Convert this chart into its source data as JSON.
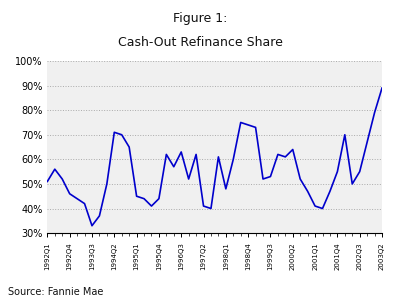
{
  "title_line1": "Figure 1:",
  "title_line2": "Cash-Out Refinance Share",
  "source": "Source: Fannie Mae",
  "line_color": "#0000cc",
  "line_width": 1.2,
  "background_color": "#ffffff",
  "plot_bg_color": "#f0f0f0",
  "ylim": [
    0.3,
    1.0
  ],
  "yticks": [
    0.3,
    0.4,
    0.5,
    0.6,
    0.7,
    0.8,
    0.9,
    1.0
  ],
  "ytick_labels": [
    "30%",
    "40%",
    "50%",
    "60%",
    "70%",
    "80%",
    "90%",
    "100%"
  ],
  "quarters_data": [
    [
      0,
      0.51
    ],
    [
      1,
      0.56
    ],
    [
      2,
      0.52
    ],
    [
      3,
      0.46
    ],
    [
      4,
      0.44
    ],
    [
      5,
      0.42
    ],
    [
      6,
      0.33
    ],
    [
      7,
      0.37
    ],
    [
      8,
      0.5
    ],
    [
      9,
      0.71
    ],
    [
      10,
      0.7
    ],
    [
      11,
      0.65
    ],
    [
      12,
      0.45
    ],
    [
      13,
      0.44
    ],
    [
      14,
      0.41
    ],
    [
      15,
      0.44
    ],
    [
      16,
      0.62
    ],
    [
      17,
      0.57
    ],
    [
      18,
      0.63
    ],
    [
      19,
      0.52
    ],
    [
      20,
      0.62
    ],
    [
      21,
      0.41
    ],
    [
      22,
      0.4
    ],
    [
      23,
      0.61
    ],
    [
      24,
      0.48
    ],
    [
      25,
      0.6
    ],
    [
      26,
      0.75
    ],
    [
      27,
      0.74
    ],
    [
      28,
      0.73
    ],
    [
      29,
      0.52
    ],
    [
      30,
      0.53
    ],
    [
      31,
      0.62
    ],
    [
      32,
      0.61
    ],
    [
      33,
      0.64
    ],
    [
      34,
      0.52
    ],
    [
      35,
      0.47
    ],
    [
      36,
      0.41
    ],
    [
      37,
      0.4
    ],
    [
      38,
      0.47
    ],
    [
      39,
      0.55
    ],
    [
      40,
      0.7
    ],
    [
      41,
      0.5
    ],
    [
      42,
      0.55
    ],
    [
      43,
      0.67
    ],
    [
      44,
      0.79
    ],
    [
      45,
      0.89
    ]
  ],
  "xtick_positions": [
    0,
    3,
    6,
    9,
    12,
    15,
    18,
    21,
    24,
    27,
    30,
    33,
    36,
    39,
    42,
    45
  ],
  "xtick_labels": [
    "1992Q1",
    "1992Q4",
    "1993Q3",
    "1994Q2",
    "1995Q1",
    "1995Q4",
    "1996Q3",
    "1997Q2",
    "1998Q1",
    "1998Q4",
    "1999Q3",
    "2000Q2",
    "2001Q1",
    "2001Q4",
    "2002Q3",
    "2003Q2"
  ],
  "all_xtick_positions": [
    0,
    1,
    2,
    3,
    4,
    5,
    6,
    7,
    8,
    9,
    10,
    11,
    12,
    13,
    14,
    15,
    16,
    17,
    18,
    19,
    20,
    21,
    22,
    23,
    24,
    25,
    26,
    27,
    28,
    29,
    30,
    31,
    32,
    33,
    34,
    35,
    36,
    37,
    38,
    39,
    40,
    41,
    42,
    43,
    44,
    45
  ]
}
